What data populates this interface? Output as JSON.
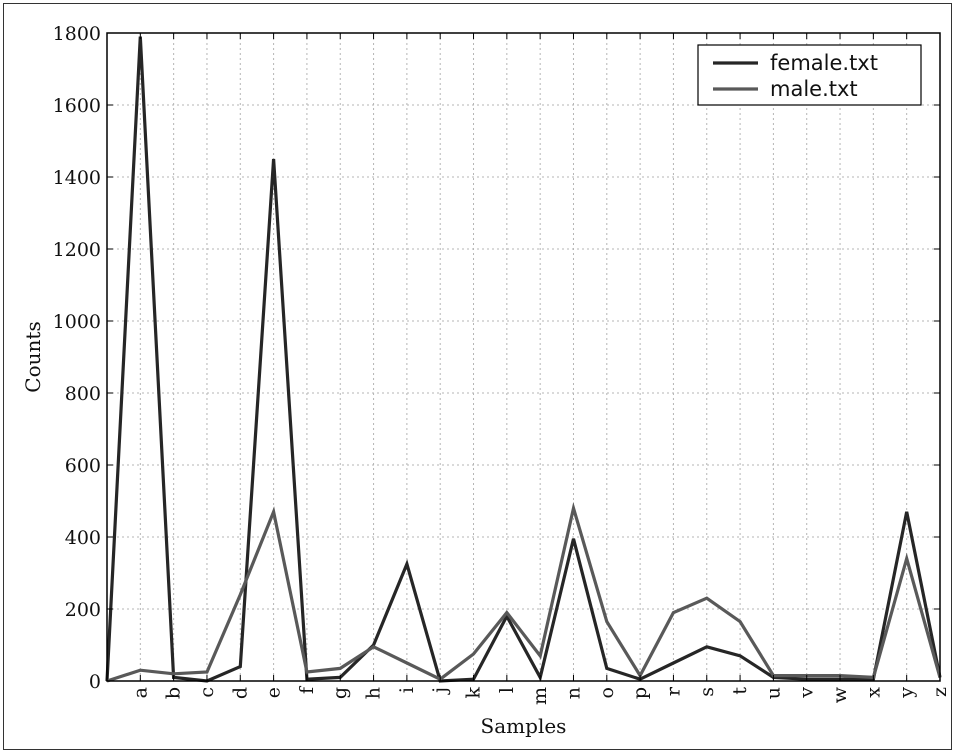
{
  "chart_data": {
    "type": "line",
    "xlabel": "Samples",
    "ylabel": "Counts",
    "ylim": [
      0,
      1800
    ],
    "yticks": [
      0,
      200,
      400,
      600,
      800,
      1000,
      1200,
      1400,
      1600,
      1800
    ],
    "categories": [
      "",
      "a",
      "b",
      "c",
      "d",
      "e",
      "f",
      "g",
      "h",
      "i",
      "j",
      "k",
      "l",
      "m",
      "n",
      "o",
      "p",
      "r",
      "s",
      "t",
      "u",
      "v",
      "w",
      "x",
      "y",
      "z"
    ],
    "grid": true,
    "legend_position": "top-right",
    "series": [
      {
        "name": "female.txt",
        "color": "#262626",
        "values": [
          0,
          1790,
          10,
          0,
          40,
          1450,
          5,
          10,
          100,
          325,
          0,
          5,
          180,
          10,
          395,
          35,
          5,
          50,
          95,
          70,
          10,
          5,
          5,
          5,
          470,
          10
        ]
      },
      {
        "name": "male.txt",
        "color": "#595959",
        "values": [
          0,
          30,
          20,
          25,
          240,
          470,
          25,
          35,
          95,
          50,
          5,
          75,
          190,
          70,
          480,
          165,
          15,
          190,
          230,
          165,
          15,
          15,
          15,
          10,
          340,
          10
        ]
      }
    ]
  }
}
